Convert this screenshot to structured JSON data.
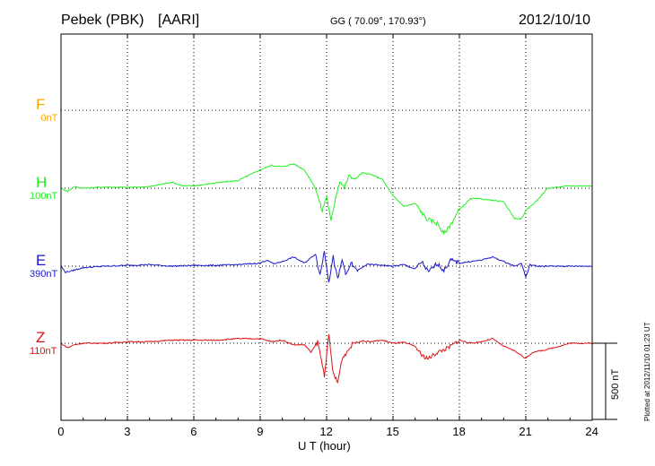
{
  "header": {
    "station": "Pebek (PBK)",
    "group": "[AARI]",
    "coords": "GG ( 70.09°, 170.93°)",
    "date": "2012/10/10"
  },
  "footer": {
    "plotted": "Plotted at 2012/11/10 01:23 UT",
    "scale_label": "500 nT"
  },
  "chart_data": {
    "type": "line",
    "xlabel": "U T (hour)",
    "xlim": [
      0,
      24
    ],
    "xticks": [
      0,
      3,
      6,
      9,
      12,
      15,
      18,
      21,
      24
    ],
    "grid": true,
    "scale_bar_nT": 500,
    "series": [
      {
        "name": "F",
        "baseline_label": "0nT",
        "color": "#ffa500",
        "x": [],
        "y": []
      },
      {
        "name": "H",
        "baseline_label": "100nT",
        "color": "#22ee22",
        "x": [
          0,
          0.3,
          0.6,
          1,
          2,
          3,
          4,
          5,
          5.5,
          6,
          7,
          8,
          9,
          9.5,
          10,
          10.5,
          11,
          11.5,
          11.8,
          12,
          12.2,
          12.4,
          12.6,
          12.8,
          13,
          13.3,
          13.6,
          14,
          14.5,
          15,
          15.5,
          16,
          16.5,
          17,
          17.3,
          17.6,
          18,
          18.5,
          19,
          19.5,
          20,
          20.5,
          20.8,
          21,
          21.5,
          22,
          23,
          24
        ],
        "y": [
          0,
          -20,
          10,
          0,
          8,
          5,
          10,
          40,
          15,
          15,
          35,
          50,
          120,
          150,
          140,
          160,
          120,
          0,
          -150,
          -50,
          -220,
          -60,
          50,
          0,
          80,
          60,
          100,
          90,
          60,
          -50,
          -120,
          -100,
          -200,
          -230,
          -300,
          -240,
          -140,
          -70,
          -70,
          -80,
          -90,
          -200,
          -200,
          -150,
          -80,
          0,
          15,
          15
        ]
      },
      {
        "name": "E",
        "baseline_label": "390nT",
        "color": "#1a1acc",
        "x": [
          0,
          0.2,
          0.5,
          1,
          2,
          3,
          4,
          5,
          6,
          7,
          8,
          9,
          9.3,
          9.6,
          10,
          10.5,
          11,
          11.5,
          11.7,
          11.9,
          12.1,
          12.3,
          12.5,
          12.7,
          12.9,
          13.1,
          13.4,
          13.8,
          14.2,
          14.6,
          15,
          15.5,
          16,
          16.3,
          16.6,
          17,
          17.3,
          17.6,
          18,
          18.5,
          19,
          19.5,
          20,
          20.5,
          20.8,
          21,
          21.2,
          21.5,
          22,
          23,
          24
        ],
        "y": [
          0,
          -40,
          -30,
          -10,
          0,
          5,
          10,
          0,
          5,
          5,
          10,
          20,
          40,
          15,
          30,
          60,
          20,
          80,
          -60,
          100,
          -100,
          60,
          -90,
          40,
          -60,
          20,
          -30,
          10,
          10,
          5,
          0,
          10,
          -20,
          30,
          -40,
          20,
          -30,
          40,
          20,
          30,
          40,
          60,
          30,
          0,
          20,
          -70,
          10,
          0,
          0,
          0,
          0
        ]
      },
      {
        "name": "Z",
        "baseline_label": "110nT",
        "color": "#dd1111",
        "x": [
          0,
          0.3,
          0.6,
          1,
          2,
          3,
          4,
          5,
          6,
          7,
          8,
          9,
          9.5,
          10,
          10.5,
          11,
          11.3,
          11.6,
          11.9,
          12.1,
          12.3,
          12.5,
          12.7,
          12.9,
          13.2,
          13.6,
          14,
          14.5,
          15,
          15.5,
          16,
          16.3,
          16.6,
          17,
          17.5,
          18,
          18.5,
          19,
          19.5,
          20,
          20.5,
          20.8,
          21,
          21.3,
          22,
          23,
          24
        ],
        "y": [
          0,
          -30,
          -10,
          0,
          0,
          10,
          10,
          20,
          20,
          20,
          30,
          30,
          10,
          20,
          -10,
          -10,
          -60,
          10,
          -210,
          50,
          -200,
          -260,
          -100,
          -60,
          0,
          15,
          10,
          20,
          0,
          5,
          -20,
          -80,
          -100,
          -60,
          -30,
          20,
          0,
          10,
          30,
          -20,
          -50,
          -80,
          -100,
          -60,
          -40,
          0,
          0
        ]
      }
    ]
  }
}
